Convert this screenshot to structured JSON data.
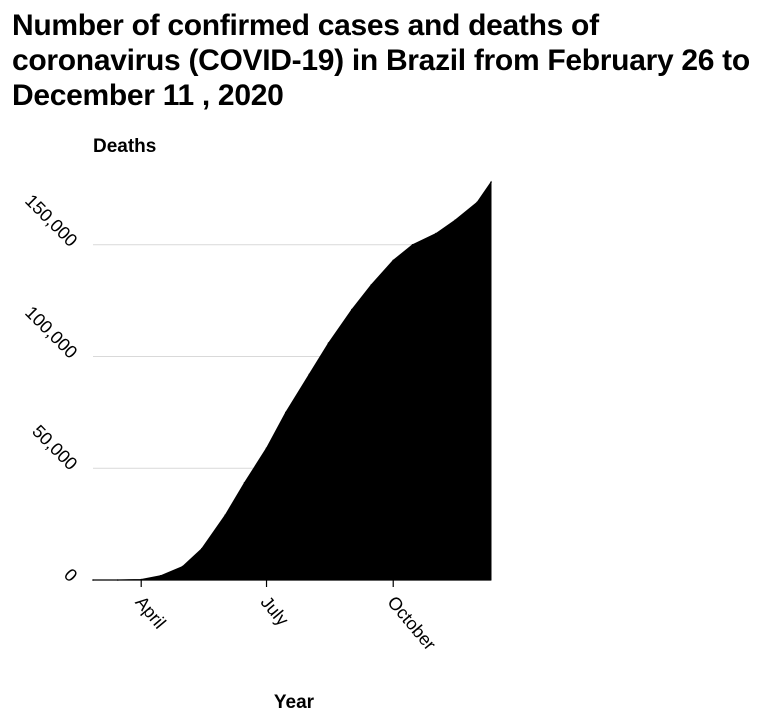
{
  "chart_data": {
    "type": "area",
    "title": "Number of confirmed cases and deaths of coronavirus (COVID-19) in Brazil from February 26 to December 11 , 2020",
    "xlabel": "Year",
    "ylabel": "Deaths",
    "x_ticks": [
      {
        "label": "April",
        "date": "2020-04-01"
      },
      {
        "label": "July",
        "date": "2020-07-01"
      },
      {
        "label": "October",
        "date": "2020-10-01"
      }
    ],
    "y_ticks": [
      {
        "label": "0",
        "value": 0
      },
      {
        "label": "50,000",
        "value": 50000
      },
      {
        "label": "100,000",
        "value": 100000
      },
      {
        "label": "150,000",
        "value": 150000
      }
    ],
    "xlim": [
      "2020-02-26",
      "2020-12-11"
    ],
    "ylim": [
      0,
      179000
    ],
    "grid": "horizontal",
    "fill_color": "#000000",
    "series": [
      {
        "x": [
          "2020-02-26",
          "2020-03-15",
          "2020-04-01",
          "2020-04-15",
          "2020-05-01",
          "2020-05-15",
          "2020-06-01",
          "2020-06-15",
          "2020-07-01",
          "2020-07-15",
          "2020-08-01",
          "2020-08-15",
          "2020-09-01",
          "2020-09-15",
          "2020-10-01",
          "2020-10-15",
          "2020-11-01",
          "2020-11-15",
          "2020-12-01",
          "2020-12-11"
        ],
        "y": [
          0,
          0,
          240,
          1900,
          6000,
          14000,
          29000,
          43500,
          59000,
          75000,
          92000,
          106000,
          121000,
          132000,
          143000,
          150000,
          155000,
          161000,
          169000,
          178000
        ]
      }
    ]
  }
}
